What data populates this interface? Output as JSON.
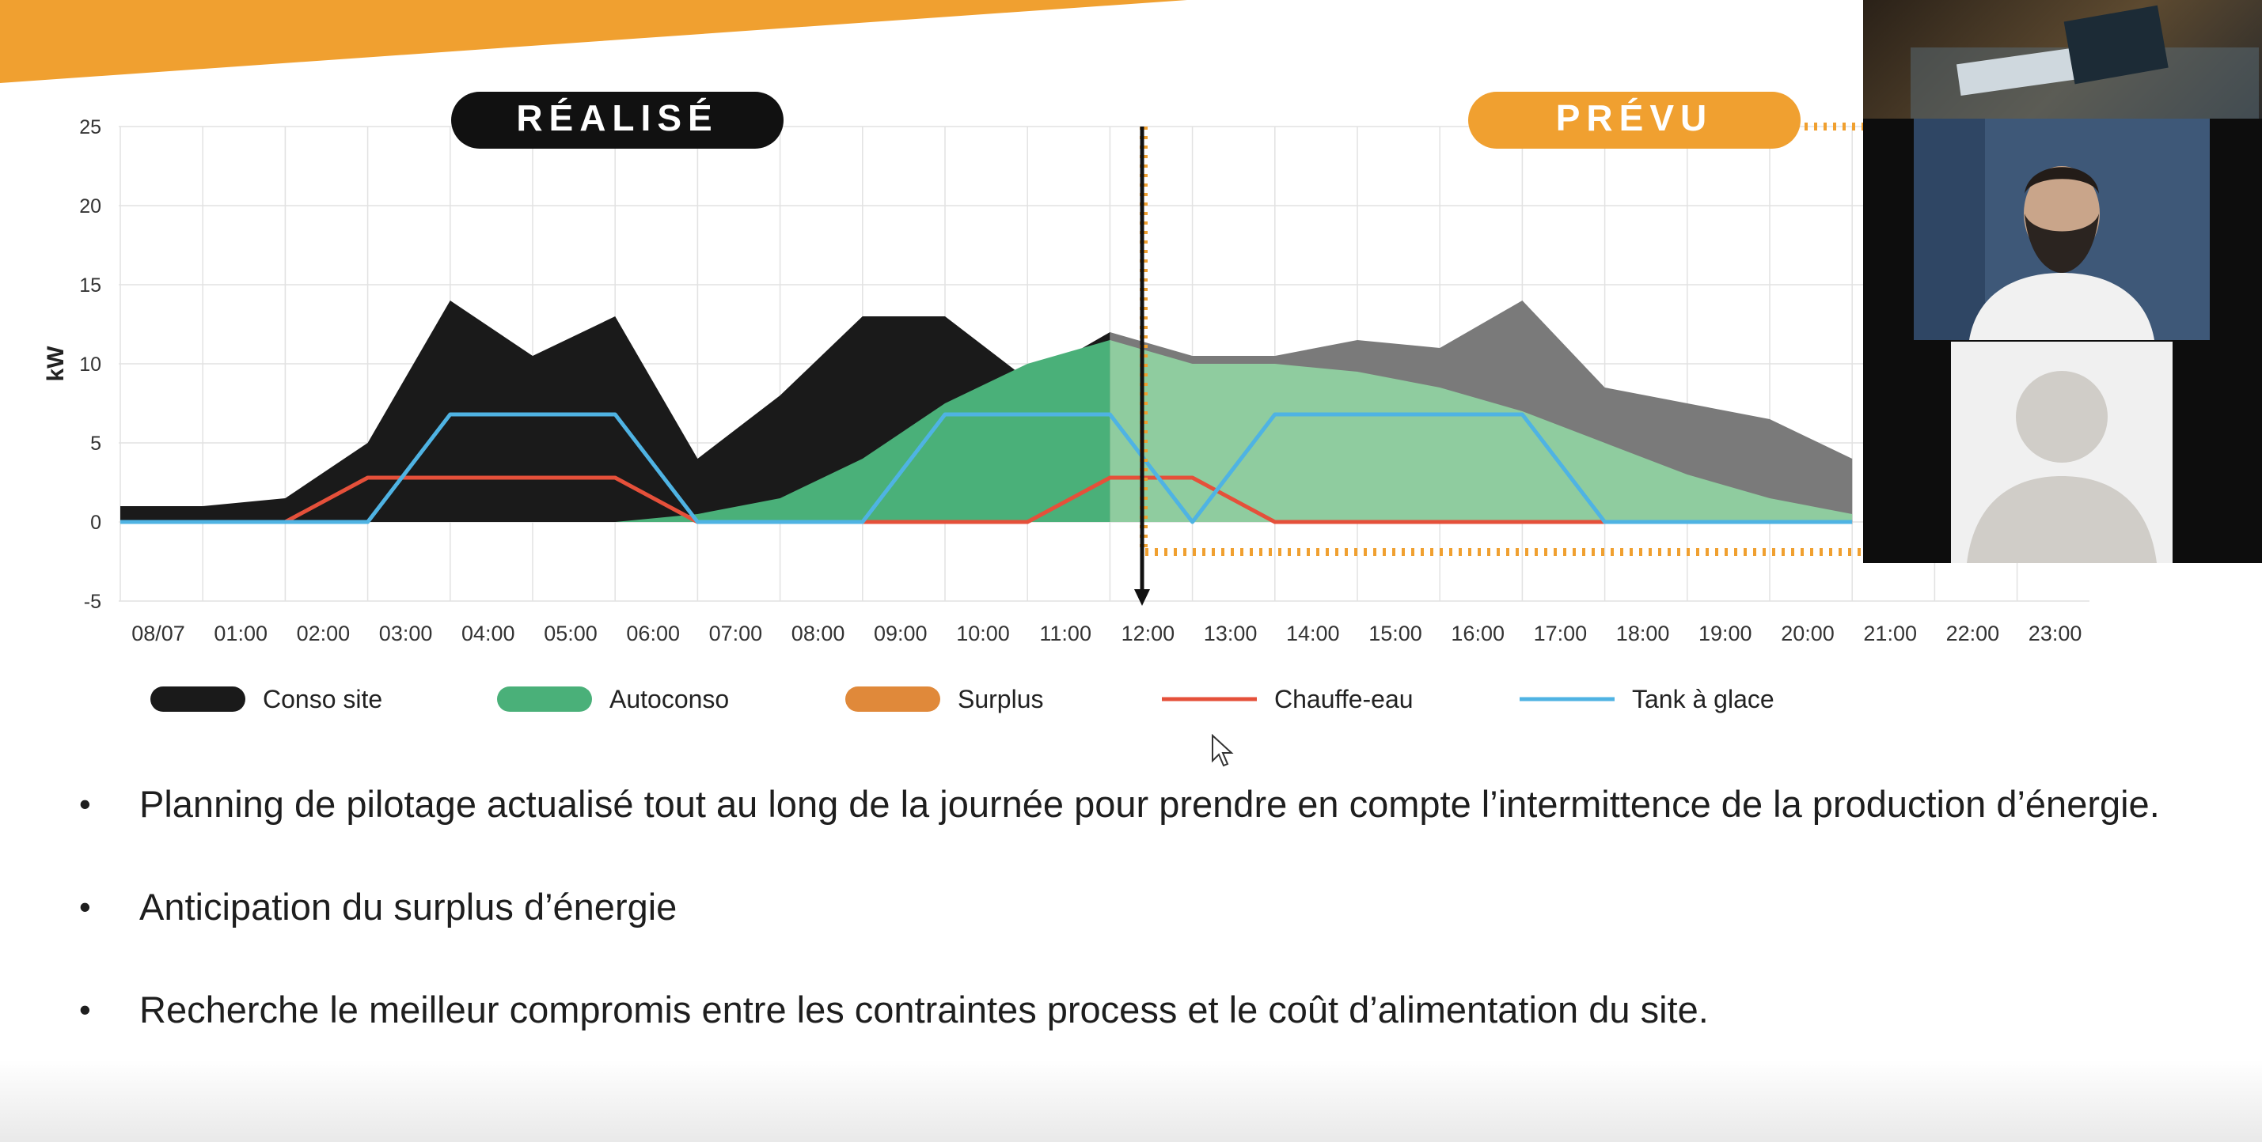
{
  "slide": {
    "banner_color": "#f0a030",
    "chart": {
      "realise_label": "RÉALISÉ",
      "prevu_label": "PRÉVU",
      "y_axis_label": "kW",
      "y_ticks": [
        "25",
        "20",
        "15",
        "10",
        "5",
        "0",
        "-5"
      ],
      "x_ticks": [
        "08/07",
        "01:00",
        "02:00",
        "03:00",
        "04:00",
        "05:00",
        "06:00",
        "07:00",
        "08:00",
        "09:00",
        "10:00",
        "11:00",
        "12:00",
        "13:00",
        "14:00",
        "15:00",
        "16:00",
        "17:00",
        "18:00",
        "19:00",
        "20:00",
        "21:00",
        "22:00",
        "23:00"
      ],
      "legend": [
        {
          "label": "Conso site",
          "color": "#1a1a1a",
          "style": "pill"
        },
        {
          "label": "Autoconso",
          "color": "#4ab079",
          "style": "pill"
        },
        {
          "label": "Surplus",
          "color": "#e0893a",
          "style": "pill"
        },
        {
          "label": "Chauffe-eau",
          "color": "#e5503a",
          "style": "line"
        },
        {
          "label": "Tank à glace",
          "color": "#4fb3e3",
          "style": "line"
        }
      ]
    },
    "bullets": [
      "Planning de pilotage actualisé tout au long de la journée pour prendre en compte l’intermittence de la production d’énergie.",
      "Anticipation du surplus d’énergie",
      "Recherche le meilleur compromis entre les contraintes process et le coût d’alimentation du site."
    ]
  },
  "chart_data": {
    "type": "area",
    "title": "",
    "xlabel": "",
    "ylabel": "kW",
    "ylim": [
      -5,
      25
    ],
    "x": [
      "08/07",
      "01:00",
      "02:00",
      "03:00",
      "04:00",
      "05:00",
      "06:00",
      "07:00",
      "08:00",
      "09:00",
      "10:00",
      "11:00",
      "12:00",
      "13:00",
      "14:00",
      "15:00",
      "16:00",
      "17:00",
      "18:00",
      "19:00",
      "20:00",
      "21:00",
      "22:00",
      "23:00"
    ],
    "sections": [
      "RÉALISÉ",
      "PRÉVU"
    ],
    "series": [
      {
        "name": "Conso site",
        "values": [
          1,
          1,
          1.5,
          5,
          14,
          10.5,
          13,
          4,
          8,
          13,
          13,
          9,
          12,
          10.5,
          10.5,
          11.5,
          11,
          14,
          8.5,
          7.5,
          6.5,
          4,
          null,
          null
        ]
      },
      {
        "name": "Autoconso",
        "values": [
          0,
          0,
          0,
          0,
          0,
          0,
          0,
          0.5,
          1.5,
          4,
          7.5,
          10,
          11.5,
          10,
          10,
          9.5,
          8.5,
          7,
          5,
          3,
          1.5,
          0.5,
          null,
          null
        ]
      },
      {
        "name": "Chauffe-eau",
        "values": [
          0,
          0,
          0,
          2.8,
          2.8,
          2.8,
          2.8,
          0,
          0,
          0,
          0,
          0,
          2.8,
          2.8,
          0,
          0,
          0,
          0,
          0,
          0,
          0,
          0,
          null,
          null
        ]
      },
      {
        "name": "Tank à glace",
        "values": [
          0,
          0,
          0,
          0,
          6.8,
          6.8,
          6.8,
          0,
          0,
          0,
          6.8,
          6.8,
          6.8,
          0,
          6.8,
          6.8,
          6.8,
          6.8,
          0,
          0,
          0,
          0,
          null,
          null
        ]
      }
    ],
    "grid": true,
    "legend_position": "bottom"
  }
}
